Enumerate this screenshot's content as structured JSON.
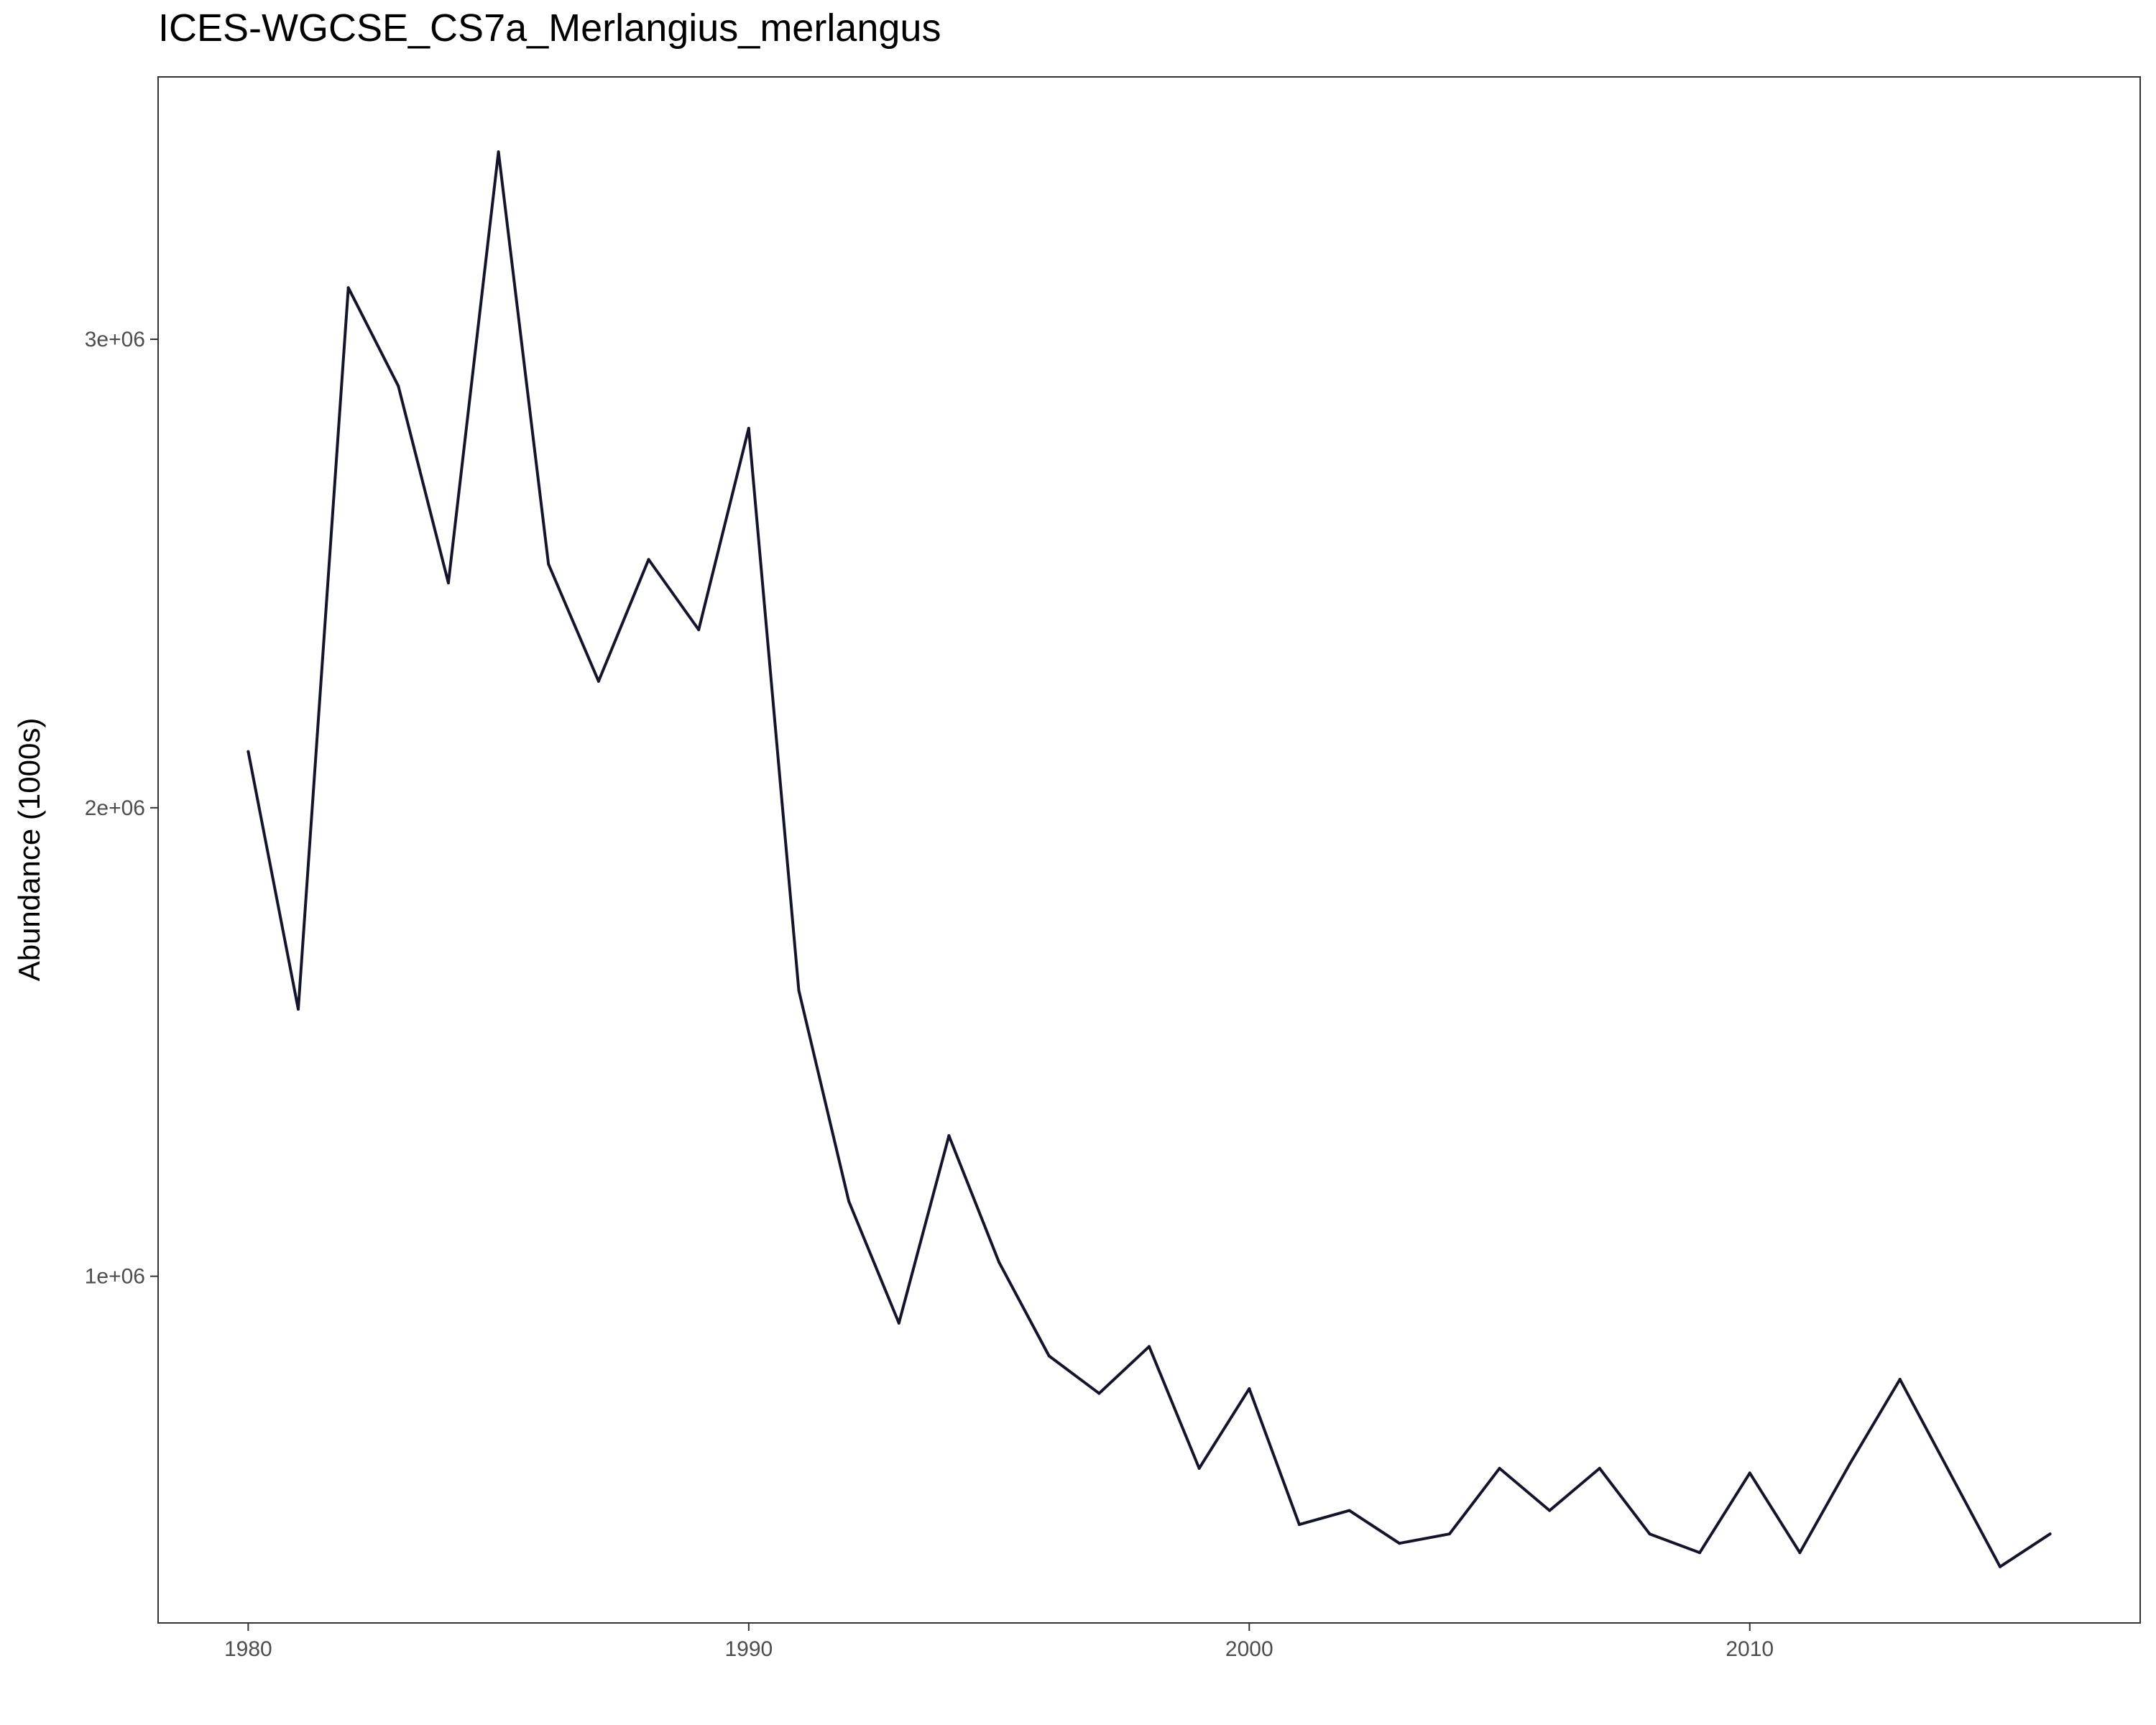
{
  "chart_data": {
    "type": "line",
    "title": "ICES-WGCSE_CS7a_Merlangius_merlangus",
    "xlabel": "",
    "ylabel": "Abundance (1000s)",
    "x": [
      1980,
      1981,
      1982,
      1983,
      1984,
      1985,
      1986,
      1987,
      1988,
      1989,
      1990,
      1991,
      1992,
      1993,
      1994,
      1995,
      1996,
      1997,
      1998,
      1999,
      2000,
      2001,
      2002,
      2003,
      2004,
      2005,
      2006,
      2007,
      2008,
      2009,
      2010,
      2011,
      2012,
      2013,
      2014,
      2015,
      2016
    ],
    "series": [
      {
        "values": [
          2120000,
          1570000,
          3110000,
          2900000,
          2480000,
          3400000,
          2520000,
          2270000,
          2530000,
          2380000,
          2810000,
          1610000,
          1160000,
          900000,
          1300000,
          1030000,
          830000,
          750000,
          850000,
          590000,
          760000,
          470000,
          500000,
          430000,
          450000,
          590000,
          500000,
          590000,
          450000,
          410000,
          580000,
          410000,
          600000,
          780000,
          580000,
          380000,
          450000
        ],
        "color": "#14142b"
      }
    ],
    "xlim": [
      1978.2,
      2017.8
    ],
    "ylim": [
      260000,
      3560000
    ],
    "xticks": [
      1980,
      1990,
      2000,
      2010
    ],
    "xtick_labels": [
      "1980",
      "1990",
      "2000",
      "2010"
    ],
    "yticks": [
      1000000,
      2000000,
      3000000
    ],
    "ytick_labels": [
      "1e+06",
      "2e+06",
      "3e+06"
    ],
    "grid": false,
    "legend": "none"
  }
}
